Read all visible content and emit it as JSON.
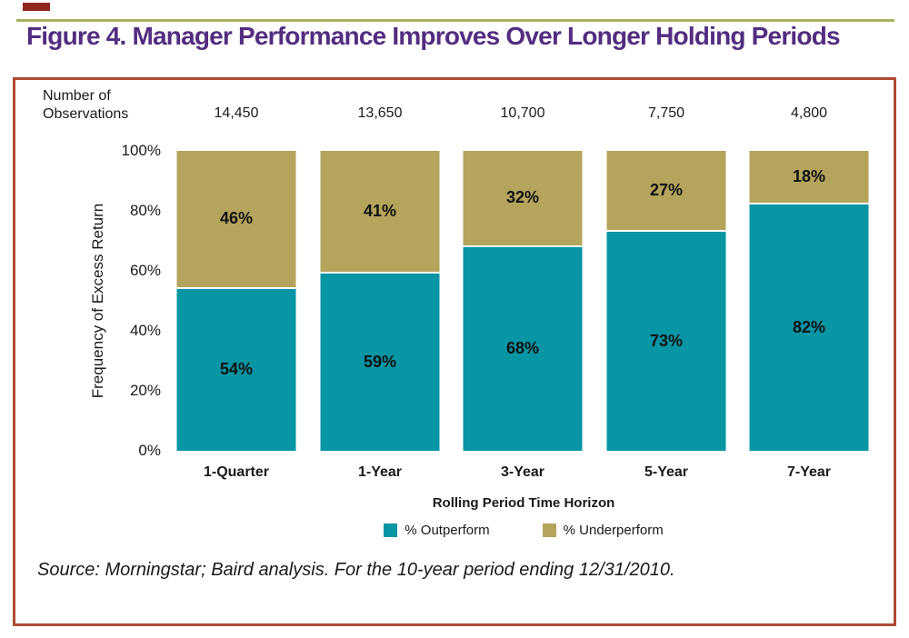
{
  "page": {
    "corner_mark_color": "#8F261E",
    "top_rule_color": "#A8B163",
    "title": "Figure 4. Manager Performance Improves Over Longer Holding Periods",
    "title_color": "#522D80"
  },
  "panel": {
    "border_color": "#AF4A33",
    "source_text": "Source: Morningstar; Baird analysis. For the 10-year period ending 12/31/2010."
  },
  "chart_data": {
    "type": "bar",
    "stacked": true,
    "title": "Figure 4. Manager Performance Improves Over Longer Holding Periods",
    "categories": [
      "1-Quarter",
      "1-Year",
      "3-Year",
      "5-Year",
      "7-Year"
    ],
    "series": [
      {
        "name": "% Outperform",
        "color": "#0895A4",
        "values": [
          54,
          59,
          68,
          73,
          82
        ]
      },
      {
        "name": "% Underperform",
        "color": "#B4A45C",
        "values": [
          46,
          41,
          32,
          27,
          18
        ]
      }
    ],
    "observations_header": [
      "Number of",
      "Observations"
    ],
    "observations": [
      "14,450",
      "13,650",
      "10,700",
      "7,750",
      "4,800"
    ],
    "ylabel": "Frequency of Excess Return",
    "xlabel": "Rolling Period Time Horizon",
    "yticks": [
      "100%",
      "80%",
      "60%",
      "40%",
      "20%",
      "0%"
    ],
    "ylim": [
      0,
      100
    ],
    "grid": false,
    "legend_position": "bottom",
    "value_label_suffix": "%"
  }
}
